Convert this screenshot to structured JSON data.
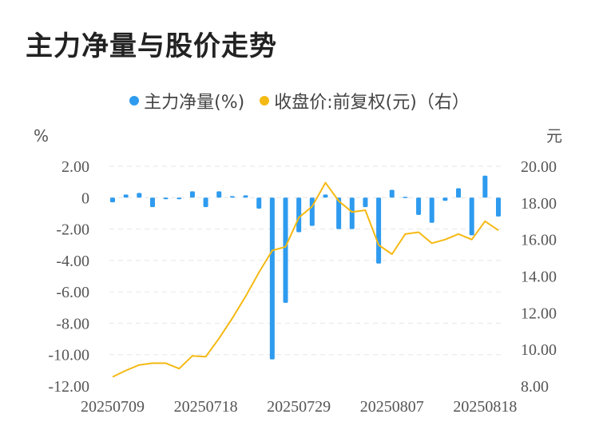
{
  "title": "主力净量与股价走势",
  "legend": {
    "bar_label": "主力净量(%)",
    "line_label": "收盘价:前复权(元)（右）"
  },
  "colors": {
    "bar": "#2e9bef",
    "line": "#f5b914",
    "grid": "#e6e6e6"
  },
  "chart_data": {
    "type": "bar+line",
    "title": "主力净量与股价走势",
    "y_left_unit": "%",
    "y_right_unit": "元",
    "y_left_ticks": [
      "2.00",
      "0",
      "-2.00",
      "-4.00",
      "-6.00",
      "-8.00",
      "-10.00",
      "-12.00"
    ],
    "y_left_range": [
      -12,
      2
    ],
    "y_right_ticks": [
      "20.00",
      "18.00",
      "16.00",
      "14.00",
      "12.00",
      "10.00",
      "8.00"
    ],
    "y_right_range": [
      8,
      20
    ],
    "x_tick_labels": [
      "20250709",
      "20250718",
      "20250729",
      "20250807",
      "20250818"
    ],
    "grid": true,
    "legend_position": "top",
    "series": [
      {
        "name": "主力净量(%)",
        "type": "bar",
        "axis": "left",
        "values": [
          -0.3,
          0.2,
          0.3,
          -0.6,
          -0.1,
          -0.1,
          0.4,
          -0.6,
          0.4,
          0.1,
          0.15,
          -0.7,
          -10.3,
          -6.7,
          -2.2,
          -1.8,
          0.2,
          -2.0,
          -2.0,
          -0.6,
          -4.2,
          0.5,
          0.05,
          -1.1,
          -1.6,
          -0.2,
          0.6,
          -2.4,
          1.4,
          -1.2
        ]
      },
      {
        "name": "收盘价:前复权(元)（右）",
        "type": "line",
        "axis": "right",
        "values": [
          8.5,
          8.85,
          9.15,
          9.25,
          9.25,
          8.95,
          9.65,
          9.6,
          10.6,
          11.7,
          12.9,
          14.2,
          15.4,
          15.6,
          17.2,
          17.8,
          19.1,
          18.1,
          17.5,
          17.6,
          15.7,
          15.2,
          16.3,
          16.4,
          15.8,
          16.0,
          16.3,
          16.0,
          17.0,
          16.5
        ]
      }
    ]
  }
}
